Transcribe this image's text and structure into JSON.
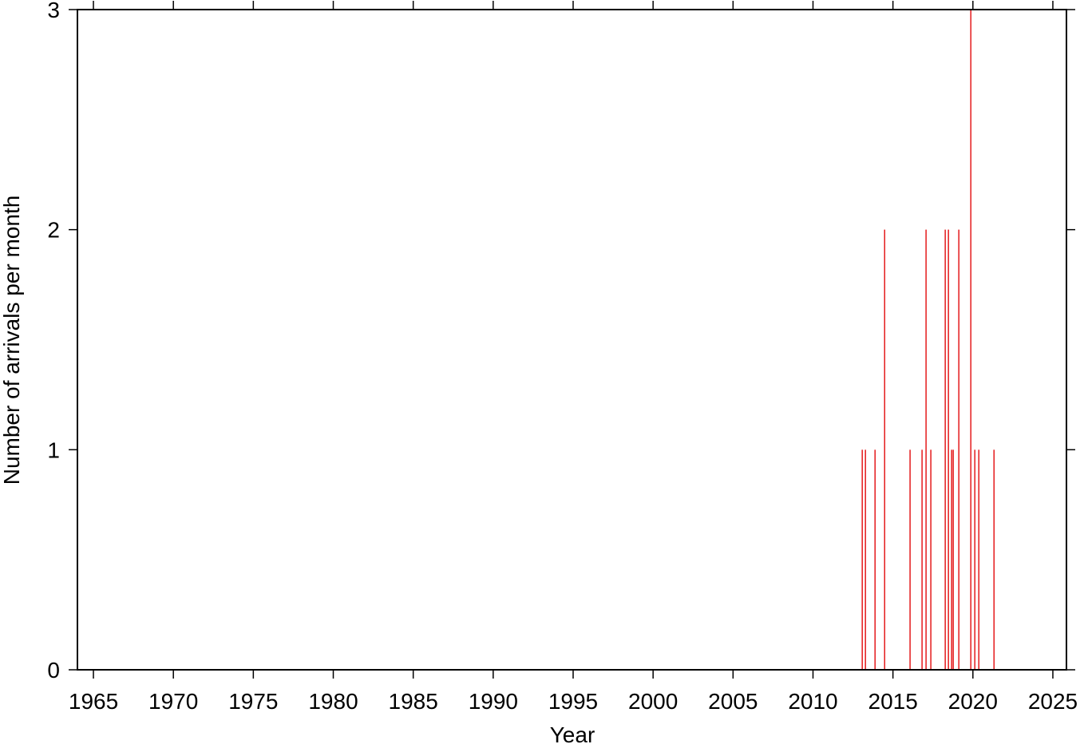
{
  "chart_data": {
    "type": "bar",
    "xlabel": "Year",
    "ylabel": "Number of arrivals per month",
    "x": [
      2013.08,
      2013.28,
      2013.88,
      2014.48,
      2016.07,
      2016.82,
      2017.07,
      2017.37,
      2018.27,
      2018.47,
      2018.67,
      2018.77,
      2019.12,
      2019.87,
      2020.12,
      2020.37,
      2021.32
    ],
    "values": [
      1,
      1,
      1,
      2,
      1,
      1,
      2,
      1,
      2,
      2,
      1,
      1,
      2,
      3,
      1,
      1,
      1
    ],
    "color": "#e41a1c",
    "xlim": [
      1964,
      2025.85
    ],
    "xticks": [
      1965,
      1970,
      1975,
      1980,
      1985,
      1990,
      1995,
      2000,
      2005,
      2010,
      2015,
      2020,
      2025
    ],
    "ylim": [
      0,
      3
    ],
    "yticks": [
      0,
      1,
      2,
      3
    ]
  }
}
